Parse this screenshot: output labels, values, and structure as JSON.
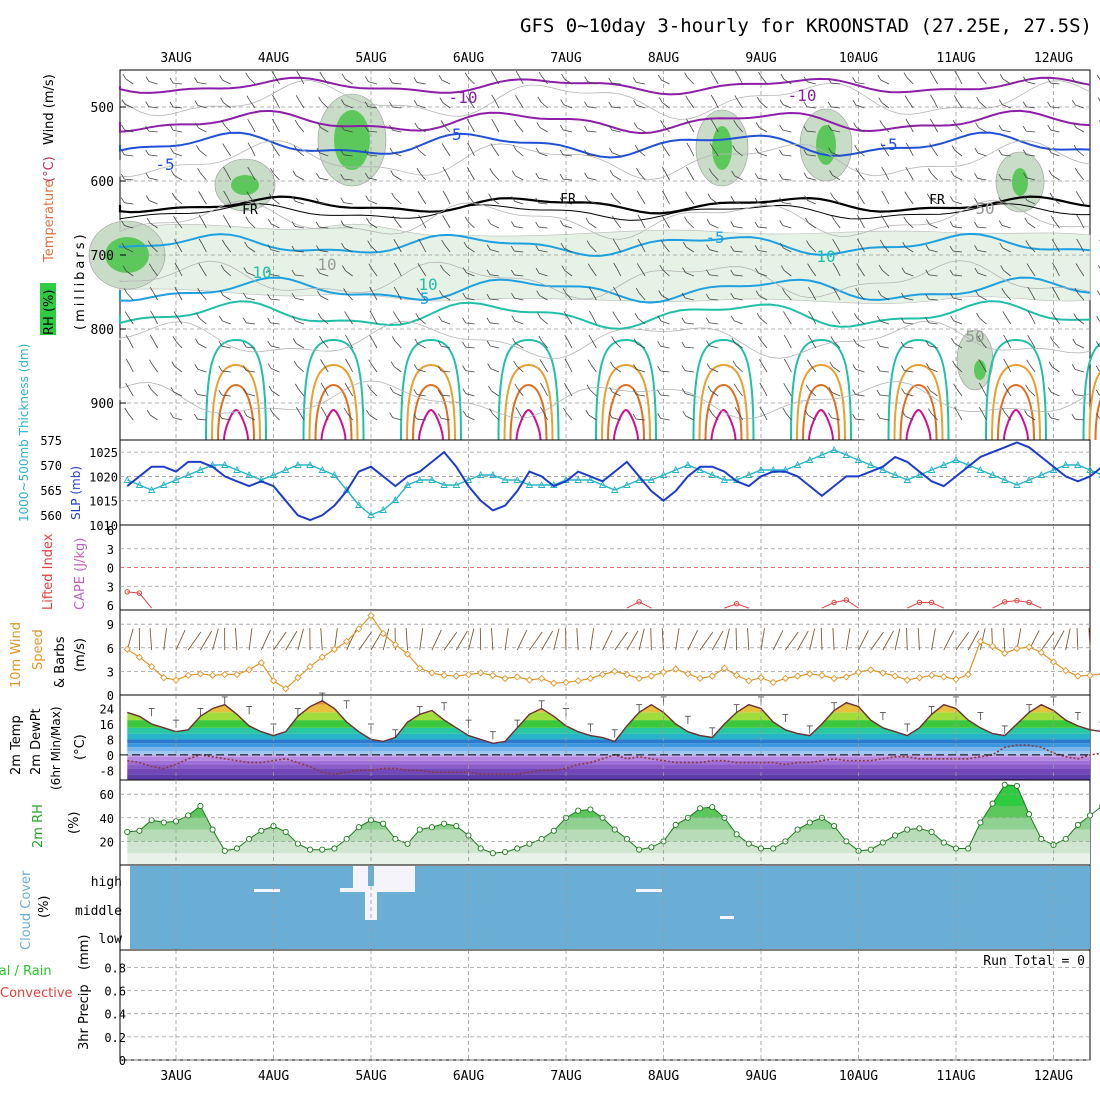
{
  "title": "GFS 0~10day 3-hourly for KROONSTAD (27.25E, 27.5S)",
  "date_labels": [
    "3AUG",
    "4AUG",
    "5AUG",
    "6AUG",
    "7AUG",
    "8AUG",
    "9AUG",
    "10AUG",
    "11AUG",
    "12AUG"
  ],
  "colors": {
    "temp_line": "#1e90c8",
    "cape": "#c060c0",
    "lifted": "#e04040",
    "slp": "#1e3cc8",
    "thickness": "#28b4c8",
    "wind": "#e0962a",
    "rh": "#28a028",
    "cloud": "#6aaed6",
    "barb": "#7a5a3c"
  },
  "chart_data": [
    {
      "type": "contour",
      "panel": "upper-air",
      "ylabel_parts": [
        "RH (%)",
        "Temperature",
        "(°C)",
        "Wind (m/s)"
      ],
      "ylabel_units": "(millibars)",
      "y_ticks": [
        500,
        600,
        700,
        800,
        900
      ],
      "ylim": [
        450,
        950
      ],
      "contour_labels": [
        "-10",
        "-10",
        "-5",
        "-5",
        "-5",
        "FR",
        "FR",
        "FR",
        "-5",
        "10",
        "10",
        "-5",
        "10",
        "10",
        "50",
        "50"
      ],
      "grid": true
    },
    {
      "type": "line",
      "panel": "slp-thickness",
      "ylabel_left": "1000~500mb Thickness (dm)",
      "ylabel_right": "SLP (mb)",
      "y_ticks_left": [
        560,
        565,
        570,
        575
      ],
      "y_ticks_right": [
        1010,
        1015,
        1020,
        1025
      ],
      "x_index": "3-hourly steps from start",
      "series": [
        {
          "name": "SLP (mb)",
          "values": [
            1018,
            1020,
            1022,
            1022,
            1021,
            1023,
            1023,
            1022,
            1020,
            1019,
            1018,
            1019,
            1018,
            1015,
            1012,
            1011,
            1012,
            1014,
            1017,
            1021,
            1022,
            1020,
            1018,
            1020,
            1021,
            1023,
            1025,
            1022,
            1018,
            1015,
            1013,
            1014,
            1017,
            1021,
            1020,
            1018,
            1019,
            1021,
            1020,
            1019,
            1021,
            1023,
            1020,
            1017,
            1015,
            1017,
            1020,
            1022,
            1022,
            1021,
            1019,
            1018,
            1020,
            1021,
            1021,
            1020,
            1018,
            1016,
            1018,
            1020,
            1020,
            1021,
            1022,
            1024,
            1023,
            1021,
            1019,
            1018,
            1020,
            1022,
            1024,
            1025,
            1026,
            1027,
            1026,
            1024,
            1022,
            1020,
            1019,
            1020,
            1022,
            1023
          ]
        },
        {
          "name": "Thickness (dm)",
          "values": [
            567,
            566,
            565,
            566,
            567,
            568,
            569,
            570,
            570,
            569,
            568,
            567,
            568,
            569,
            570,
            570,
            569,
            568,
            565,
            562,
            560,
            561,
            563,
            566,
            567,
            567,
            566,
            566,
            567,
            568,
            568,
            567,
            567,
            566,
            566,
            566,
            567,
            567,
            567,
            566,
            565,
            566,
            567,
            567,
            568,
            569,
            570,
            569,
            568,
            567,
            567,
            568,
            569,
            569,
            569,
            570,
            571,
            572,
            573,
            572,
            571,
            570,
            569,
            568,
            567,
            568,
            569,
            570,
            571,
            570,
            569,
            568,
            567,
            566,
            567,
            568,
            569,
            570,
            570,
            569,
            568,
            568
          ]
        }
      ]
    },
    {
      "type": "line",
      "panel": "stability",
      "ylabel_left": "Lifted Index",
      "ylabel_right": "CAPE (J/kg)",
      "y_ticks": [
        "6",
        "3",
        "0",
        "3",
        "6"
      ],
      "y_tick_values": [
        -6,
        -3,
        0,
        3,
        6
      ],
      "series": [
        {
          "name": "Lifted Index",
          "values": [
            3.9,
            4.1,
            6.5
          ]
        },
        {
          "name": "Lifted Index (8AUG)",
          "values": [
            6.5,
            5.5,
            6.5
          ]
        },
        {
          "name": "Lifted Index (9AUG)",
          "values": [
            6.5,
            5.8,
            6.5
          ]
        },
        {
          "name": "Lifted Index (10AUG)",
          "values": [
            6.5,
            5.6,
            5.2,
            6.5
          ]
        },
        {
          "name": "Lifted Index (11AUG)",
          "values": [
            6.5,
            5.6,
            5.6,
            6.5
          ]
        },
        {
          "name": "Lifted Index (12AUG)",
          "values": [
            6.5,
            5.5,
            5.3,
            5.6,
            6.5
          ]
        }
      ]
    },
    {
      "type": "line",
      "panel": "wind10m",
      "ylabel": [
        "10m Wind",
        "Speed",
        "& Barbs"
      ],
      "yunits": "(m/s)",
      "y_ticks": [
        0,
        3,
        6,
        9
      ],
      "ylim": [
        0,
        10.8
      ],
      "series": [
        {
          "name": "10m Wind Speed",
          "values": [
            5.8,
            4.8,
            3.6,
            2.2,
            1.9,
            2.5,
            2.7,
            2.5,
            2.6,
            2.6,
            3.2,
            4.1,
            1.8,
            0.8,
            2.2,
            3.6,
            4.8,
            5.8,
            6.8,
            8.4,
            10.1,
            7.8,
            6.4,
            5.2,
            3.4,
            2.8,
            2.5,
            2.4,
            2.6,
            2.8,
            2.5,
            2.1,
            2.3,
            1.9,
            2.1,
            1.5,
            1.6,
            1.8,
            2.1,
            2.6,
            3.0,
            2.6,
            2.1,
            2.4,
            2.9,
            3.3,
            2.7,
            2.1,
            2.4,
            3.4,
            2.5,
            1.8,
            2.2,
            1.6,
            2.1,
            2.4,
            2.7,
            2.5,
            2.1,
            2.3,
            2.9,
            3.2,
            2.8,
            2.4,
            1.9,
            2.2,
            2.5,
            2.3,
            2.0,
            2.6,
            6.8,
            6.2,
            5.3,
            5.9,
            6.1,
            5.4,
            4.2,
            3.1,
            2.4,
            2.5,
            2.7,
            2.6
          ]
        }
      ]
    },
    {
      "type": "area",
      "panel": "temperature",
      "ylabel": [
        "2m Temp",
        "2m DewPt",
        "(6hr Min/Max)"
      ],
      "yunits": "(°C)",
      "y_ticks": [
        -8,
        0,
        8,
        16,
        24
      ],
      "ylim": [
        -13,
        31
      ],
      "series": [
        {
          "name": "2m Temp",
          "values": [
            22,
            20,
            16,
            14,
            12,
            13,
            20,
            24,
            26,
            21,
            15,
            12,
            10,
            12,
            20,
            25,
            28,
            24,
            17,
            12,
            8,
            7,
            9,
            17,
            21,
            23,
            18,
            14,
            10,
            8,
            6,
            7,
            14,
            21,
            24,
            20,
            15,
            12,
            10,
            9,
            7,
            15,
            22,
            26,
            22,
            16,
            12,
            10,
            9,
            16,
            22,
            26,
            24,
            17,
            13,
            11,
            10,
            16,
            23,
            27,
            25,
            18,
            14,
            12,
            10,
            14,
            21,
            26,
            24,
            18,
            14,
            11,
            10,
            16,
            22,
            26,
            23,
            18,
            15,
            13,
            12,
            13
          ]
        },
        {
          "name": "2m DewPt",
          "values": [
            -3,
            -4,
            -6,
            -7,
            -5,
            -2,
            0,
            -1,
            -2,
            -3,
            -4,
            -4,
            -3,
            -2,
            -4,
            -6,
            -9,
            -10,
            -9,
            -8,
            -8,
            -7,
            -7,
            -8,
            -8,
            -9,
            -9,
            -9,
            -9,
            -10,
            -10,
            -10,
            -10,
            -9,
            -8,
            -8,
            -7,
            -5,
            -4,
            -2,
            0,
            -2,
            -1,
            -2,
            -3,
            -4,
            -4,
            -4,
            -3,
            -3,
            -4,
            -4,
            -4,
            -4,
            -5,
            -4,
            -4,
            -3,
            -2,
            -3,
            -3,
            -3,
            -2,
            -1,
            -1,
            -2,
            -2,
            -2,
            -2,
            -2,
            -1,
            0,
            4,
            5,
            5,
            4,
            1,
            -1,
            -2,
            0,
            1,
            2
          ]
        }
      ]
    },
    {
      "type": "area",
      "panel": "rh",
      "ylabel": "2m RH",
      "yunits": "(%)",
      "y_ticks": [
        20,
        40,
        60
      ],
      "ylim": [
        0,
        72
      ],
      "series": [
        {
          "name": "2m RH",
          "values": [
            28,
            29,
            38,
            36,
            37,
            42,
            50,
            30,
            12,
            14,
            22,
            29,
            33,
            28,
            18,
            13,
            13,
            14,
            22,
            32,
            38,
            35,
            22,
            18,
            30,
            32,
            35,
            33,
            25,
            14,
            10,
            11,
            14,
            18,
            22,
            29,
            40,
            46,
            47,
            40,
            30,
            22,
            13,
            15,
            20,
            34,
            40,
            48,
            49,
            40,
            26,
            18,
            14,
            14,
            20,
            30,
            36,
            40,
            33,
            20,
            12,
            13,
            19,
            25,
            30,
            31,
            28,
            19,
            14,
            14,
            36,
            52,
            68,
            67,
            43,
            22,
            17,
            22,
            34,
            42,
            50,
            55
          ]
        }
      ]
    },
    {
      "type": "heatmap",
      "panel": "cloud",
      "ylabel": "Cloud Cover",
      "yunits": "(%)",
      "rows": [
        "high",
        "middle",
        "low"
      ]
    },
    {
      "type": "bar",
      "panel": "precip",
      "ylabel_left": "Total / Rain",
      "ylabel_left2": "Convective",
      "ylabel": "3hr Precip",
      "yunits": "(mm)",
      "y_ticks": [
        "0",
        "0.2",
        "0.4",
        "0.6",
        "0.8"
      ],
      "ylim": [
        0,
        0.95
      ],
      "annotation": "Run Total = 0",
      "values": []
    }
  ]
}
